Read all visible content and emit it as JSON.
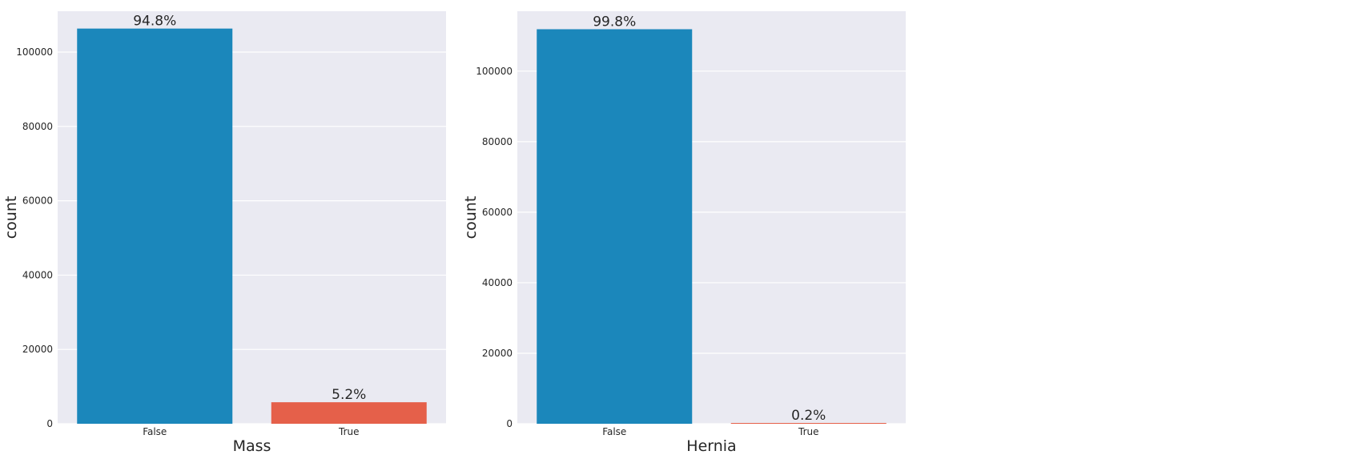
{
  "colors": {
    "background": "#eaeaf2",
    "grid": "#ffffff",
    "false_bar": "#1b87bb",
    "true_bar": "#e5604a",
    "text": "#262626"
  },
  "chart_data": [
    {
      "type": "bar",
      "categories": [
        "False",
        "True"
      ],
      "values": [
        106331,
        5789
      ],
      "bar_labels": [
        "94.8%",
        "5.2%"
      ],
      "xlabel": "Mass",
      "ylabel": "count",
      "yticks": [
        0,
        20000,
        40000,
        60000,
        80000,
        100000
      ],
      "ylim": [
        0,
        111000
      ],
      "grid": true
    },
    {
      "type": "bar",
      "categories": [
        "False",
        "True"
      ],
      "values": [
        111893,
        227
      ],
      "bar_labels": [
        "99.8%",
        "0.2%"
      ],
      "xlabel": "Hernia",
      "ylabel": "count",
      "yticks": [
        0,
        20000,
        40000,
        60000,
        80000,
        100000
      ],
      "ylim": [
        0,
        117000
      ],
      "grid": true
    }
  ]
}
